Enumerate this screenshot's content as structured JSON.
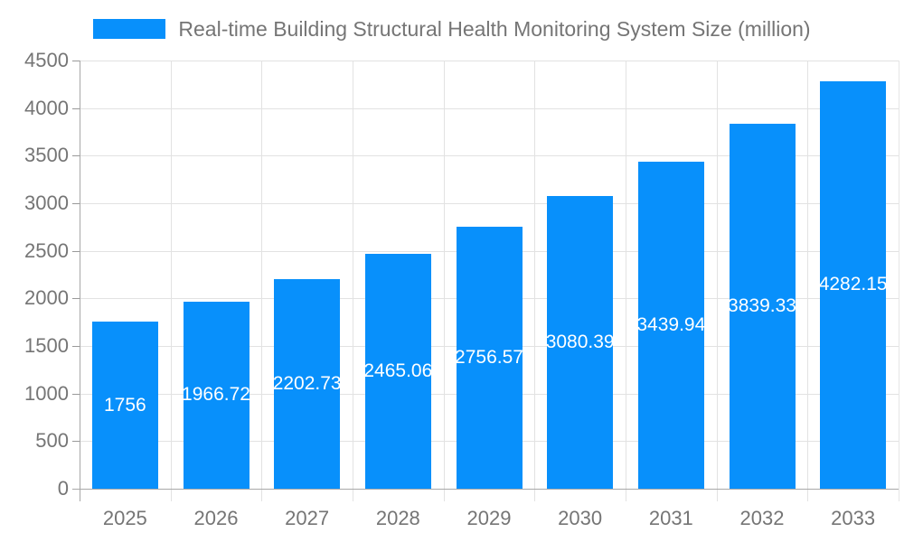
{
  "legend": {
    "label": "Real-time Building Structural Health Monitoring System Size (million)",
    "swatch_color": "#0890fb"
  },
  "chart_data": {
    "type": "bar",
    "title": "Real-time Building Structural Health Monitoring System Size (million)",
    "categories": [
      "2025",
      "2026",
      "2027",
      "2028",
      "2029",
      "2030",
      "2031",
      "2032",
      "2033"
    ],
    "values": [
      1756,
      1966.72,
      2202.73,
      2465.06,
      2756.57,
      3080.39,
      3439.94,
      3839.33,
      4282.15
    ],
    "value_labels": [
      "1756",
      "1966.72",
      "2202.73",
      "2465.06",
      "2756.57",
      "3080.39",
      "3439.94",
      "3839.33",
      "4282.15"
    ],
    "xlabel": "",
    "ylabel": "",
    "ylim": [
      0,
      4500
    ],
    "ytick_interval": 500,
    "ytick_labels": [
      "0",
      "500",
      "1000",
      "1500",
      "2000",
      "2500",
      "3000",
      "3500",
      "4000",
      "4500"
    ],
    "grid": true,
    "legend_position": "top",
    "colors": {
      "bar": "#0890fb",
      "value_label": "#ffffff",
      "axis_line": "#a8a8a8",
      "tick": "#999999",
      "gridline": "#e2e2e2",
      "plot_right_border": "#e6e6e6",
      "axis_text": "#757575"
    }
  }
}
